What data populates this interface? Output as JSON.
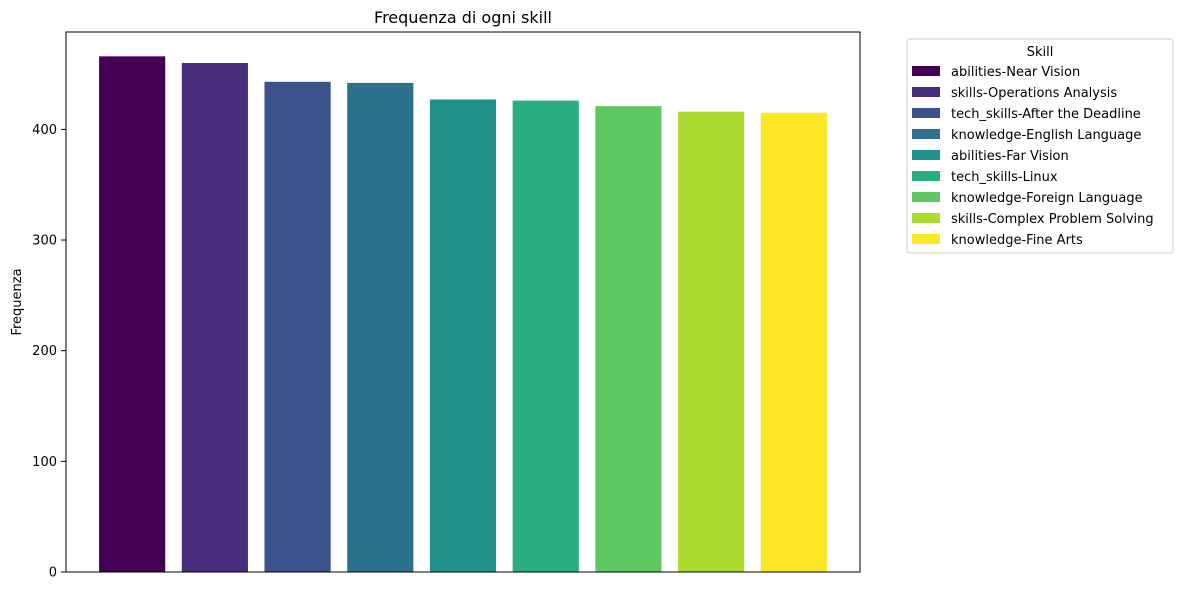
{
  "chart_data": {
    "type": "bar",
    "title": "Frequenza di ogni skill",
    "xlabel": "",
    "ylabel": "Frequenza",
    "ylim": [
      0,
      488
    ],
    "yticks": [
      0,
      100,
      200,
      300,
      400
    ],
    "categories": [
      "abilities-Near Vision",
      "skills-Operations Analysis",
      "tech_skills-After the Deadline",
      "knowledge-English Language",
      "abilities-Far Vision",
      "tech_skills-Linux",
      "knowledge-Foreign Language",
      "skills-Complex Problem Solving",
      "knowledge-Fine Arts"
    ],
    "values": [
      466,
      460,
      443,
      442,
      427,
      426,
      421,
      416,
      415
    ],
    "colors": [
      "#440154",
      "#472d7b",
      "#3b528b",
      "#2c728e",
      "#21918c",
      "#28ae80",
      "#5ec962",
      "#addc30",
      "#fde725"
    ],
    "legend": {
      "title": "Skill",
      "placement": "outside-right"
    },
    "grid": false
  }
}
